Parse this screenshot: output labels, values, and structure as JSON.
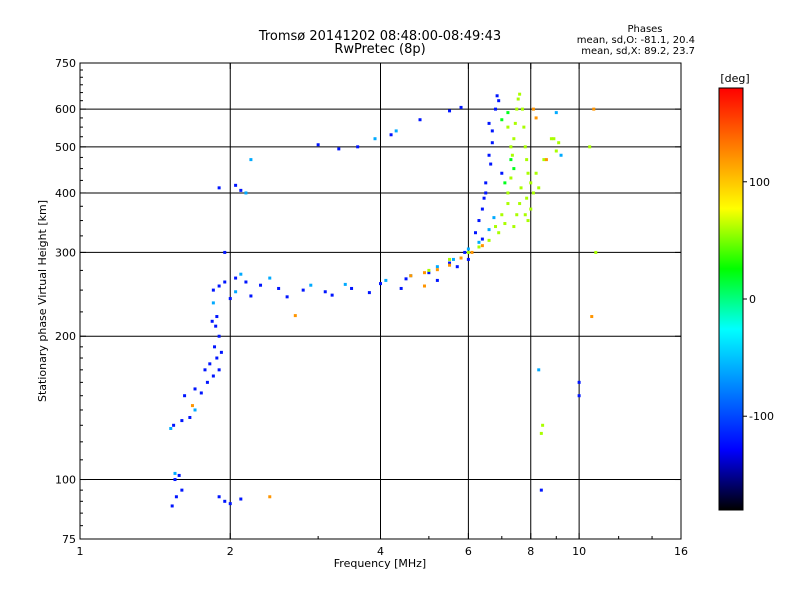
{
  "chart_data": {
    "type": "scatter",
    "title": "Tromsø 20141202 08:48:00-08:49:43",
    "subtitle": "RwPretec (8p)",
    "xlabel": "Frequency [MHz]",
    "ylabel": "Stationary phase Virtual Height [km]",
    "x_scale": "log",
    "y_scale": "log",
    "xlim": [
      1,
      16
    ],
    "ylim": [
      75,
      750
    ],
    "x_ticks": [
      1,
      2,
      4,
      6,
      8,
      10,
      16
    ],
    "y_ticks": [
      75,
      100,
      200,
      300,
      400,
      500,
      600,
      750
    ],
    "x_gridlines": [
      2,
      4,
      6,
      8,
      10
    ],
    "y_gridlines": [
      100,
      200,
      300,
      400,
      500,
      600
    ],
    "grid": true,
    "legend": {
      "heading": "Phases",
      "line1": "mean, sd,O: -81.1, 20.4",
      "line2": "mean, sd,X:  89.2, 23.7",
      "placement": "top-right"
    },
    "colorbar": {
      "label": "[deg]",
      "range": [
        -180,
        180
      ],
      "ticks": [
        100,
        0,
        -100
      ],
      "colors": [
        "#ff0000",
        "#ff8000",
        "#ffff00",
        "#00ff00",
        "#00ffff",
        "#0080ff",
        "#0000ff",
        "#000000"
      ]
    },
    "series": [
      {
        "phase_deg": -120,
        "points": [
          [
            1.53,
            88
          ],
          [
            1.56,
            92
          ],
          [
            1.6,
            95
          ],
          [
            1.55,
            100
          ],
          [
            1.58,
            102
          ],
          [
            1.54,
            130
          ],
          [
            1.6,
            133
          ],
          [
            1.66,
            135
          ],
          [
            1.62,
            150
          ],
          [
            1.7,
            155
          ],
          [
            1.75,
            152
          ],
          [
            1.8,
            160
          ],
          [
            1.85,
            165
          ],
          [
            1.9,
            170
          ],
          [
            1.88,
            180
          ],
          [
            1.86,
            190
          ],
          [
            1.9,
            200
          ],
          [
            1.87,
            210
          ],
          [
            1.84,
            215
          ],
          [
            1.88,
            220
          ],
          [
            1.85,
            250
          ],
          [
            1.9,
            255
          ],
          [
            1.95,
            260
          ],
          [
            2.05,
            265
          ],
          [
            2.15,
            260
          ],
          [
            2.3,
            256
          ],
          [
            2.5,
            252
          ],
          [
            2.8,
            250
          ],
          [
            3.1,
            248
          ],
          [
            3.5,
            252
          ],
          [
            4.0,
            258
          ],
          [
            4.5,
            264
          ],
          [
            5.0,
            272
          ],
          [
            5.5,
            285
          ],
          [
            5.9,
            300
          ],
          [
            6.2,
            330
          ],
          [
            6.4,
            370
          ],
          [
            6.5,
            420
          ],
          [
            6.6,
            480
          ],
          [
            6.7,
            540
          ],
          [
            6.8,
            600
          ],
          [
            6.85,
            640
          ],
          [
            6.65,
            460
          ],
          [
            6.45,
            390
          ],
          [
            6.3,
            350
          ],
          [
            1.9,
            92
          ],
          [
            1.95,
            90
          ],
          [
            2.0,
            89
          ],
          [
            2.1,
            91
          ],
          [
            1.9,
            410
          ],
          [
            2.05,
            415
          ],
          [
            2.1,
            405
          ],
          [
            3.0,
            505
          ],
          [
            3.3,
            495
          ],
          [
            3.6,
            500
          ],
          [
            4.2,
            530
          ],
          [
            4.8,
            570
          ],
          [
            5.5,
            595
          ],
          [
            5.8,
            605
          ],
          [
            8.4,
            95
          ],
          [
            10.0,
            160
          ],
          [
            10.0,
            150
          ],
          [
            1.95,
            300
          ],
          [
            2.0,
            240
          ],
          [
            2.2,
            243
          ],
          [
            2.6,
            242
          ],
          [
            3.2,
            244
          ],
          [
            3.8,
            247
          ],
          [
            4.4,
            252
          ],
          [
            5.2,
            262
          ],
          [
            5.7,
            280
          ],
          [
            6.0,
            290
          ],
          [
            6.6,
            560
          ],
          [
            6.9,
            625
          ],
          [
            6.7,
            510
          ],
          [
            7.0,
            440
          ],
          [
            6.5,
            400
          ],
          [
            6.4,
            320
          ],
          [
            1.78,
            170
          ],
          [
            1.82,
            175
          ],
          [
            1.92,
            185
          ]
        ]
      },
      {
        "phase_deg": -60,
        "points": [
          [
            1.55,
            103
          ],
          [
            1.52,
            128
          ],
          [
            1.7,
            140
          ],
          [
            2.1,
            270
          ],
          [
            2.4,
            265
          ],
          [
            2.9,
            256
          ],
          [
            3.4,
            257
          ],
          [
            4.1,
            262
          ],
          [
            4.6,
            268
          ],
          [
            5.2,
            280
          ],
          [
            5.6,
            290
          ],
          [
            6.0,
            305
          ],
          [
            6.3,
            315
          ],
          [
            6.6,
            335
          ],
          [
            6.75,
            355
          ],
          [
            2.2,
            470
          ],
          [
            2.15,
            400
          ],
          [
            3.9,
            520
          ],
          [
            4.3,
            540
          ],
          [
            9.0,
            590
          ],
          [
            9.2,
            480
          ],
          [
            1.85,
            235
          ],
          [
            2.05,
            248
          ],
          [
            8.3,
            170
          ]
        ]
      },
      {
        "phase_deg": 20,
        "points": [
          [
            7.0,
            570
          ],
          [
            7.2,
            590
          ],
          [
            7.3,
            470
          ],
          [
            7.4,
            450
          ],
          [
            7.1,
            420
          ]
        ]
      },
      {
        "phase_deg": 60,
        "points": [
          [
            5.0,
            275
          ],
          [
            5.5,
            290
          ],
          [
            6.0,
            300
          ],
          [
            6.3,
            308
          ],
          [
            6.6,
            318
          ],
          [
            6.9,
            330
          ],
          [
            7.1,
            345
          ],
          [
            7.2,
            380
          ],
          [
            7.3,
            430
          ],
          [
            7.35,
            480
          ],
          [
            7.4,
            520
          ],
          [
            7.45,
            560
          ],
          [
            7.5,
            600
          ],
          [
            7.55,
            630
          ],
          [
            7.6,
            645
          ],
          [
            7.7,
            600
          ],
          [
            7.75,
            550
          ],
          [
            7.8,
            500
          ],
          [
            7.85,
            470
          ],
          [
            7.9,
            440
          ],
          [
            8.0,
            420
          ],
          [
            8.1,
            400
          ],
          [
            7.6,
            380
          ],
          [
            7.5,
            360
          ],
          [
            7.4,
            340
          ],
          [
            7.8,
            360
          ],
          [
            7.9,
            350
          ],
          [
            8.0,
            370
          ],
          [
            8.3,
            410
          ],
          [
            8.5,
            470
          ],
          [
            8.8,
            520
          ],
          [
            7.2,
            550
          ],
          [
            7.3,
            500
          ],
          [
            7.65,
            410
          ],
          [
            7.85,
            390
          ],
          [
            8.2,
            440
          ],
          [
            8.4,
            125
          ],
          [
            8.45,
            130
          ],
          [
            8.9,
            520
          ],
          [
            9.0,
            490
          ],
          [
            9.1,
            510
          ],
          [
            10.8,
            300
          ],
          [
            10.5,
            500
          ],
          [
            6.8,
            340
          ],
          [
            7.0,
            360
          ],
          [
            7.2,
            400
          ]
        ]
      },
      {
        "phase_deg": 120,
        "points": [
          [
            4.6,
            268
          ],
          [
            4.9,
            272
          ],
          [
            5.2,
            276
          ],
          [
            5.5,
            282
          ],
          [
            5.8,
            292
          ],
          [
            6.1,
            300
          ],
          [
            6.4,
            310
          ],
          [
            2.7,
            221
          ],
          [
            2.4,
            92
          ],
          [
            4.9,
            255
          ],
          [
            8.1,
            600
          ],
          [
            8.2,
            575
          ],
          [
            8.6,
            470
          ],
          [
            10.6,
            220
          ],
          [
            10.7,
            600
          ],
          [
            1.68,
            143
          ]
        ]
      }
    ]
  }
}
